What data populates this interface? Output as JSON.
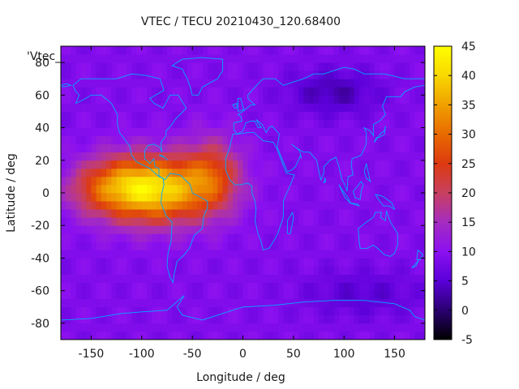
{
  "chart_data": {
    "type": "heatmap",
    "title": "VTEC / TECU 20210430_120.68400",
    "xlabel": "Longitude / deg",
    "ylabel": "Latitude / deg",
    "series_label": "'Vtec_",
    "xlim": [
      -180,
      180
    ],
    "ylim": [
      -90,
      90
    ],
    "xticks": [
      -150,
      -100,
      -50,
      0,
      50,
      100,
      150
    ],
    "yticks": [
      -80,
      -60,
      -40,
      -20,
      0,
      20,
      40,
      60,
      80
    ],
    "colorbar": {
      "range": [
        -5,
        45
      ],
      "ticks": [
        -5,
        0,
        5,
        10,
        15,
        20,
        25,
        30,
        35,
        40,
        45
      ],
      "colormap": [
        "#000000",
        "#2a0070",
        "#5a00d8",
        "#8b10f0",
        "#a52cc0",
        "#c84060",
        "#dd3a10",
        "#e86a00",
        "#f0a000",
        "#f8d800",
        "#ffff00"
      ]
    },
    "features": {
      "background_level_tecu": 9,
      "peak": {
        "lon": -85,
        "lat": 2,
        "value_tecu": 38
      },
      "secondary_peak": {
        "lon": -30,
        "lat": 12,
        "value_tecu": 28
      },
      "minimum": {
        "lon": 90,
        "lat": 62,
        "value_tecu": 3
      }
    },
    "overlay": "coastlines",
    "coastline_color": "#00aaff"
  }
}
